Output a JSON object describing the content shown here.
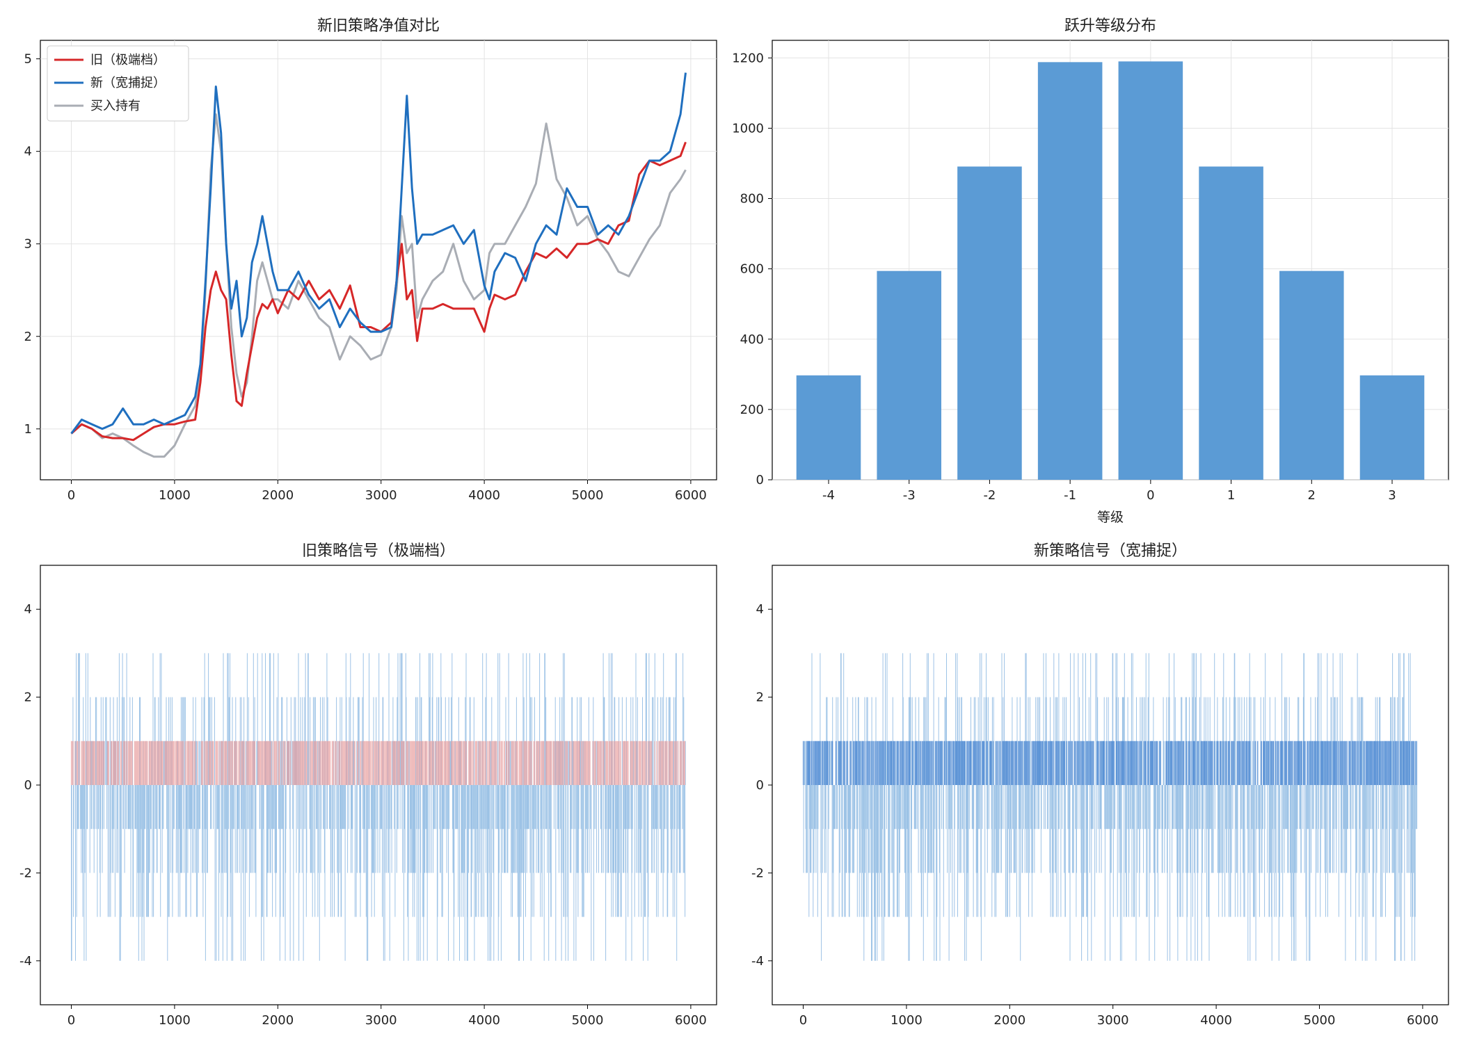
{
  "chart_data": [
    {
      "type": "line",
      "title": "新旧策略净值对比",
      "xlabel": "",
      "ylabel": "",
      "xlim": [
        -300,
        6250
      ],
      "ylim": [
        0.45,
        5.2
      ],
      "xticks": [
        0,
        1000,
        2000,
        3000,
        4000,
        5000,
        6000
      ],
      "yticks": [
        1,
        2,
        3,
        4,
        5
      ],
      "grid": true,
      "legend": "top-left",
      "series": [
        {
          "name": "旧（极端档）",
          "color": "#d62728",
          "x": [
            0,
            100,
            200,
            300,
            400,
            500,
            600,
            700,
            800,
            900,
            1000,
            1100,
            1200,
            1250,
            1300,
            1350,
            1400,
            1450,
            1500,
            1550,
            1600,
            1650,
            1700,
            1750,
            1800,
            1850,
            1900,
            1950,
            2000,
            2100,
            2200,
            2300,
            2400,
            2500,
            2600,
            2700,
            2800,
            2900,
            3000,
            3100,
            3150,
            3200,
            3250,
            3300,
            3350,
            3400,
            3500,
            3600,
            3700,
            3800,
            3900,
            4000,
            4050,
            4100,
            4200,
            4300,
            4400,
            4500,
            4600,
            4700,
            4800,
            4900,
            5000,
            5100,
            5200,
            5300,
            5400,
            5500,
            5600,
            5700,
            5800,
            5900,
            5950
          ],
          "y": [
            0.95,
            1.05,
            1.0,
            0.92,
            0.9,
            0.9,
            0.88,
            0.95,
            1.02,
            1.05,
            1.05,
            1.08,
            1.1,
            1.5,
            2.1,
            2.5,
            2.7,
            2.5,
            2.4,
            1.8,
            1.3,
            1.25,
            1.6,
            1.9,
            2.2,
            2.35,
            2.3,
            2.4,
            2.25,
            2.5,
            2.4,
            2.6,
            2.4,
            2.5,
            2.3,
            2.55,
            2.1,
            2.1,
            2.05,
            2.15,
            2.6,
            3.0,
            2.4,
            2.5,
            1.95,
            2.3,
            2.3,
            2.35,
            2.3,
            2.3,
            2.3,
            2.05,
            2.3,
            2.45,
            2.4,
            2.45,
            2.7,
            2.9,
            2.85,
            2.95,
            2.85,
            3.0,
            3.0,
            3.05,
            3.0,
            3.2,
            3.25,
            3.75,
            3.9,
            3.85,
            3.9,
            3.95,
            4.1
          ]
        },
        {
          "name": "新（宽捕捉）",
          "color": "#1f6fbf",
          "x": [
            0,
            100,
            200,
            300,
            400,
            500,
            600,
            700,
            800,
            900,
            1000,
            1100,
            1200,
            1250,
            1300,
            1350,
            1400,
            1450,
            1500,
            1550,
            1600,
            1650,
            1700,
            1750,
            1800,
            1850,
            1900,
            1950,
            2000,
            2100,
            2200,
            2300,
            2400,
            2500,
            2600,
            2700,
            2800,
            2900,
            3000,
            3100,
            3150,
            3200,
            3250,
            3300,
            3350,
            3400,
            3500,
            3600,
            3700,
            3800,
            3900,
            4000,
            4050,
            4100,
            4200,
            4300,
            4400,
            4500,
            4600,
            4700,
            4800,
            4900,
            5000,
            5100,
            5200,
            5300,
            5400,
            5500,
            5600,
            5700,
            5800,
            5900,
            5950
          ],
          "y": [
            0.95,
            1.1,
            1.05,
            1.0,
            1.05,
            1.22,
            1.05,
            1.05,
            1.1,
            1.05,
            1.1,
            1.15,
            1.35,
            1.7,
            2.6,
            3.6,
            4.7,
            4.2,
            3.0,
            2.3,
            2.6,
            2.0,
            2.2,
            2.8,
            3.0,
            3.3,
            3.0,
            2.7,
            2.5,
            2.5,
            2.7,
            2.45,
            2.3,
            2.4,
            2.1,
            2.3,
            2.15,
            2.05,
            2.05,
            2.1,
            2.6,
            3.6,
            4.6,
            3.6,
            3.0,
            3.1,
            3.1,
            3.15,
            3.2,
            3.0,
            3.15,
            2.55,
            2.4,
            2.7,
            2.9,
            2.85,
            2.6,
            3.0,
            3.2,
            3.1,
            3.6,
            3.4,
            3.4,
            3.1,
            3.2,
            3.1,
            3.3,
            3.6,
            3.9,
            3.9,
            4.0,
            4.4,
            4.85
          ]
        },
        {
          "name": "买入持有",
          "color": "#a9adb4",
          "x": [
            0,
            100,
            200,
            300,
            400,
            500,
            600,
            700,
            800,
            900,
            1000,
            1100,
            1200,
            1250,
            1300,
            1350,
            1400,
            1450,
            1500,
            1550,
            1600,
            1650,
            1700,
            1750,
            1800,
            1850,
            1900,
            1950,
            2000,
            2100,
            2200,
            2300,
            2400,
            2500,
            2600,
            2700,
            2800,
            2900,
            3000,
            3100,
            3150,
            3200,
            3250,
            3300,
            3350,
            3400,
            3500,
            3600,
            3700,
            3800,
            3900,
            4000,
            4050,
            4100,
            4200,
            4300,
            4400,
            4500,
            4600,
            4700,
            4800,
            4900,
            5000,
            5100,
            5200,
            5300,
            5400,
            5500,
            5600,
            5700,
            5800,
            5900,
            5950
          ],
          "y": [
            0.95,
            1.05,
            1.0,
            0.9,
            0.95,
            0.9,
            0.82,
            0.75,
            0.7,
            0.7,
            0.82,
            1.05,
            1.25,
            1.6,
            2.5,
            3.8,
            4.4,
            4.0,
            3.0,
            2.1,
            1.6,
            1.35,
            1.5,
            2.0,
            2.6,
            2.8,
            2.6,
            2.4,
            2.4,
            2.3,
            2.6,
            2.4,
            2.2,
            2.1,
            1.75,
            2.0,
            1.9,
            1.75,
            1.8,
            2.1,
            2.5,
            3.3,
            2.9,
            3.0,
            2.2,
            2.4,
            2.6,
            2.7,
            3.0,
            2.6,
            2.4,
            2.5,
            2.9,
            3.0,
            3.0,
            3.2,
            3.4,
            3.65,
            4.3,
            3.7,
            3.5,
            3.2,
            3.3,
            3.05,
            2.9,
            2.7,
            2.65,
            2.85,
            3.05,
            3.2,
            3.55,
            3.7,
            3.8
          ]
        }
      ]
    },
    {
      "type": "bar",
      "title": "跃升等级分布",
      "xlabel": "等级",
      "ylabel": "",
      "categories": [
        "-4",
        "-3",
        "-2",
        "-1",
        "0",
        "1",
        "2",
        "3"
      ],
      "values": [
        297,
        594,
        891,
        1188,
        1190,
        891,
        594,
        297
      ],
      "ylim": [
        0,
        1250
      ],
      "yticks": [
        0,
        200,
        400,
        600,
        800,
        1000,
        1200
      ],
      "color": "#5b9bd5",
      "grid": true
    },
    {
      "type": "line",
      "title": "旧策略信号（极端档）",
      "xlabel": "",
      "ylabel": "",
      "xlim": [
        -300,
        6250
      ],
      "ylim": [
        -5,
        5
      ],
      "xticks": [
        0,
        1000,
        2000,
        3000,
        4000,
        5000,
        6000
      ],
      "yticks": [
        -4,
        -2,
        0,
        2,
        4
      ],
      "grid": false,
      "series": [
        {
          "name": "",
          "color": "#5b9bd5",
          "x": [
            0,
            5950
          ],
          "y": [
            -4,
            3
          ],
          "levels": [
            -4,
            -3,
            -2,
            -1,
            0,
            1,
            2,
            3
          ]
        },
        {
          "name": "",
          "color": "#e8a0a0",
          "x": [
            0,
            5950
          ],
          "y": [
            0,
            1
          ],
          "levels": [
            0,
            1
          ]
        }
      ]
    },
    {
      "type": "line",
      "title": "新策略信号（宽捕捉）",
      "xlabel": "",
      "ylabel": "",
      "xlim": [
        -300,
        6250
      ],
      "ylim": [
        -5,
        5
      ],
      "xticks": [
        0,
        1000,
        2000,
        3000,
        4000,
        5000,
        6000
      ],
      "yticks": [
        -4,
        -2,
        0,
        2,
        4
      ],
      "grid": false,
      "series": [
        {
          "name": "",
          "color": "#5b9bd5",
          "x": [
            0,
            5950
          ],
          "y": [
            -4,
            3
          ],
          "levels": [
            -4,
            -3,
            -2,
            -1,
            0,
            1,
            2,
            3
          ]
        },
        {
          "name": "",
          "color": "#3f7fcf",
          "x": [
            0,
            5950
          ],
          "y": [
            0,
            1
          ],
          "levels": [
            0,
            1
          ]
        }
      ]
    }
  ]
}
